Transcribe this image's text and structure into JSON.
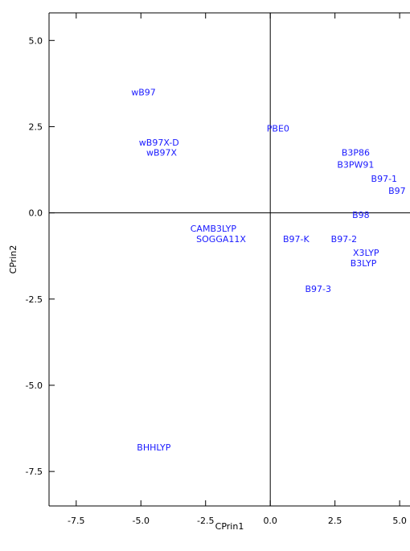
{
  "chart_data": {
    "type": "scatter",
    "title": "",
    "xlabel": "CPrin1",
    "ylabel": "CPrin2",
    "xlim": [
      -8.55,
      5.4
    ],
    "ylim": [
      -8.5,
      5.8
    ],
    "x_ticks": [
      -7.5,
      -5.0,
      -2.5,
      0.0,
      2.5,
      5.0
    ],
    "x_tick_labels": [
      "-7.5",
      "-5.0",
      "-2.5",
      "0.0",
      "2.5",
      "5.0"
    ],
    "y_ticks": [
      -7.5,
      -5.0,
      -2.5,
      0.0,
      2.5,
      5.0
    ],
    "y_tick_labels": [
      "-7.5",
      "-5.0",
      "-2.5",
      "0.0",
      "2.5",
      "5.0"
    ],
    "reference_lines": {
      "x": 0,
      "y": 0
    },
    "label_color": "#1a1aff",
    "points": [
      {
        "label": "wB97",
        "x": -4.9,
        "y": 3.5
      },
      {
        "label": "wB97X-D",
        "x": -4.3,
        "y": 2.05
      },
      {
        "label": "wB97X",
        "x": -4.2,
        "y": 1.75
      },
      {
        "label": "PBE0",
        "x": 0.3,
        "y": 2.45
      },
      {
        "label": "B3P86",
        "x": 3.3,
        "y": 1.75
      },
      {
        "label": "B3PW91",
        "x": 3.3,
        "y": 1.4
      },
      {
        "label": "B97-1",
        "x": 4.4,
        "y": 1.0
      },
      {
        "label": "B97",
        "x": 4.9,
        "y": 0.65
      },
      {
        "label": "B98",
        "x": 3.5,
        "y": -0.05
      },
      {
        "label": "CAMB3LYP",
        "x": -2.2,
        "y": -0.45
      },
      {
        "label": "SOGGA11X",
        "x": -1.9,
        "y": -0.75
      },
      {
        "label": "B97-K",
        "x": 1.0,
        "y": -0.75
      },
      {
        "label": "B97-2",
        "x": 2.85,
        "y": -0.75
      },
      {
        "label": "X3LYP",
        "x": 3.7,
        "y": -1.15
      },
      {
        "label": "B3LYP",
        "x": 3.6,
        "y": -1.45
      },
      {
        "label": "B97-3",
        "x": 1.85,
        "y": -2.2
      },
      {
        "label": "BHHLYP",
        "x": -4.5,
        "y": -6.8
      }
    ]
  }
}
